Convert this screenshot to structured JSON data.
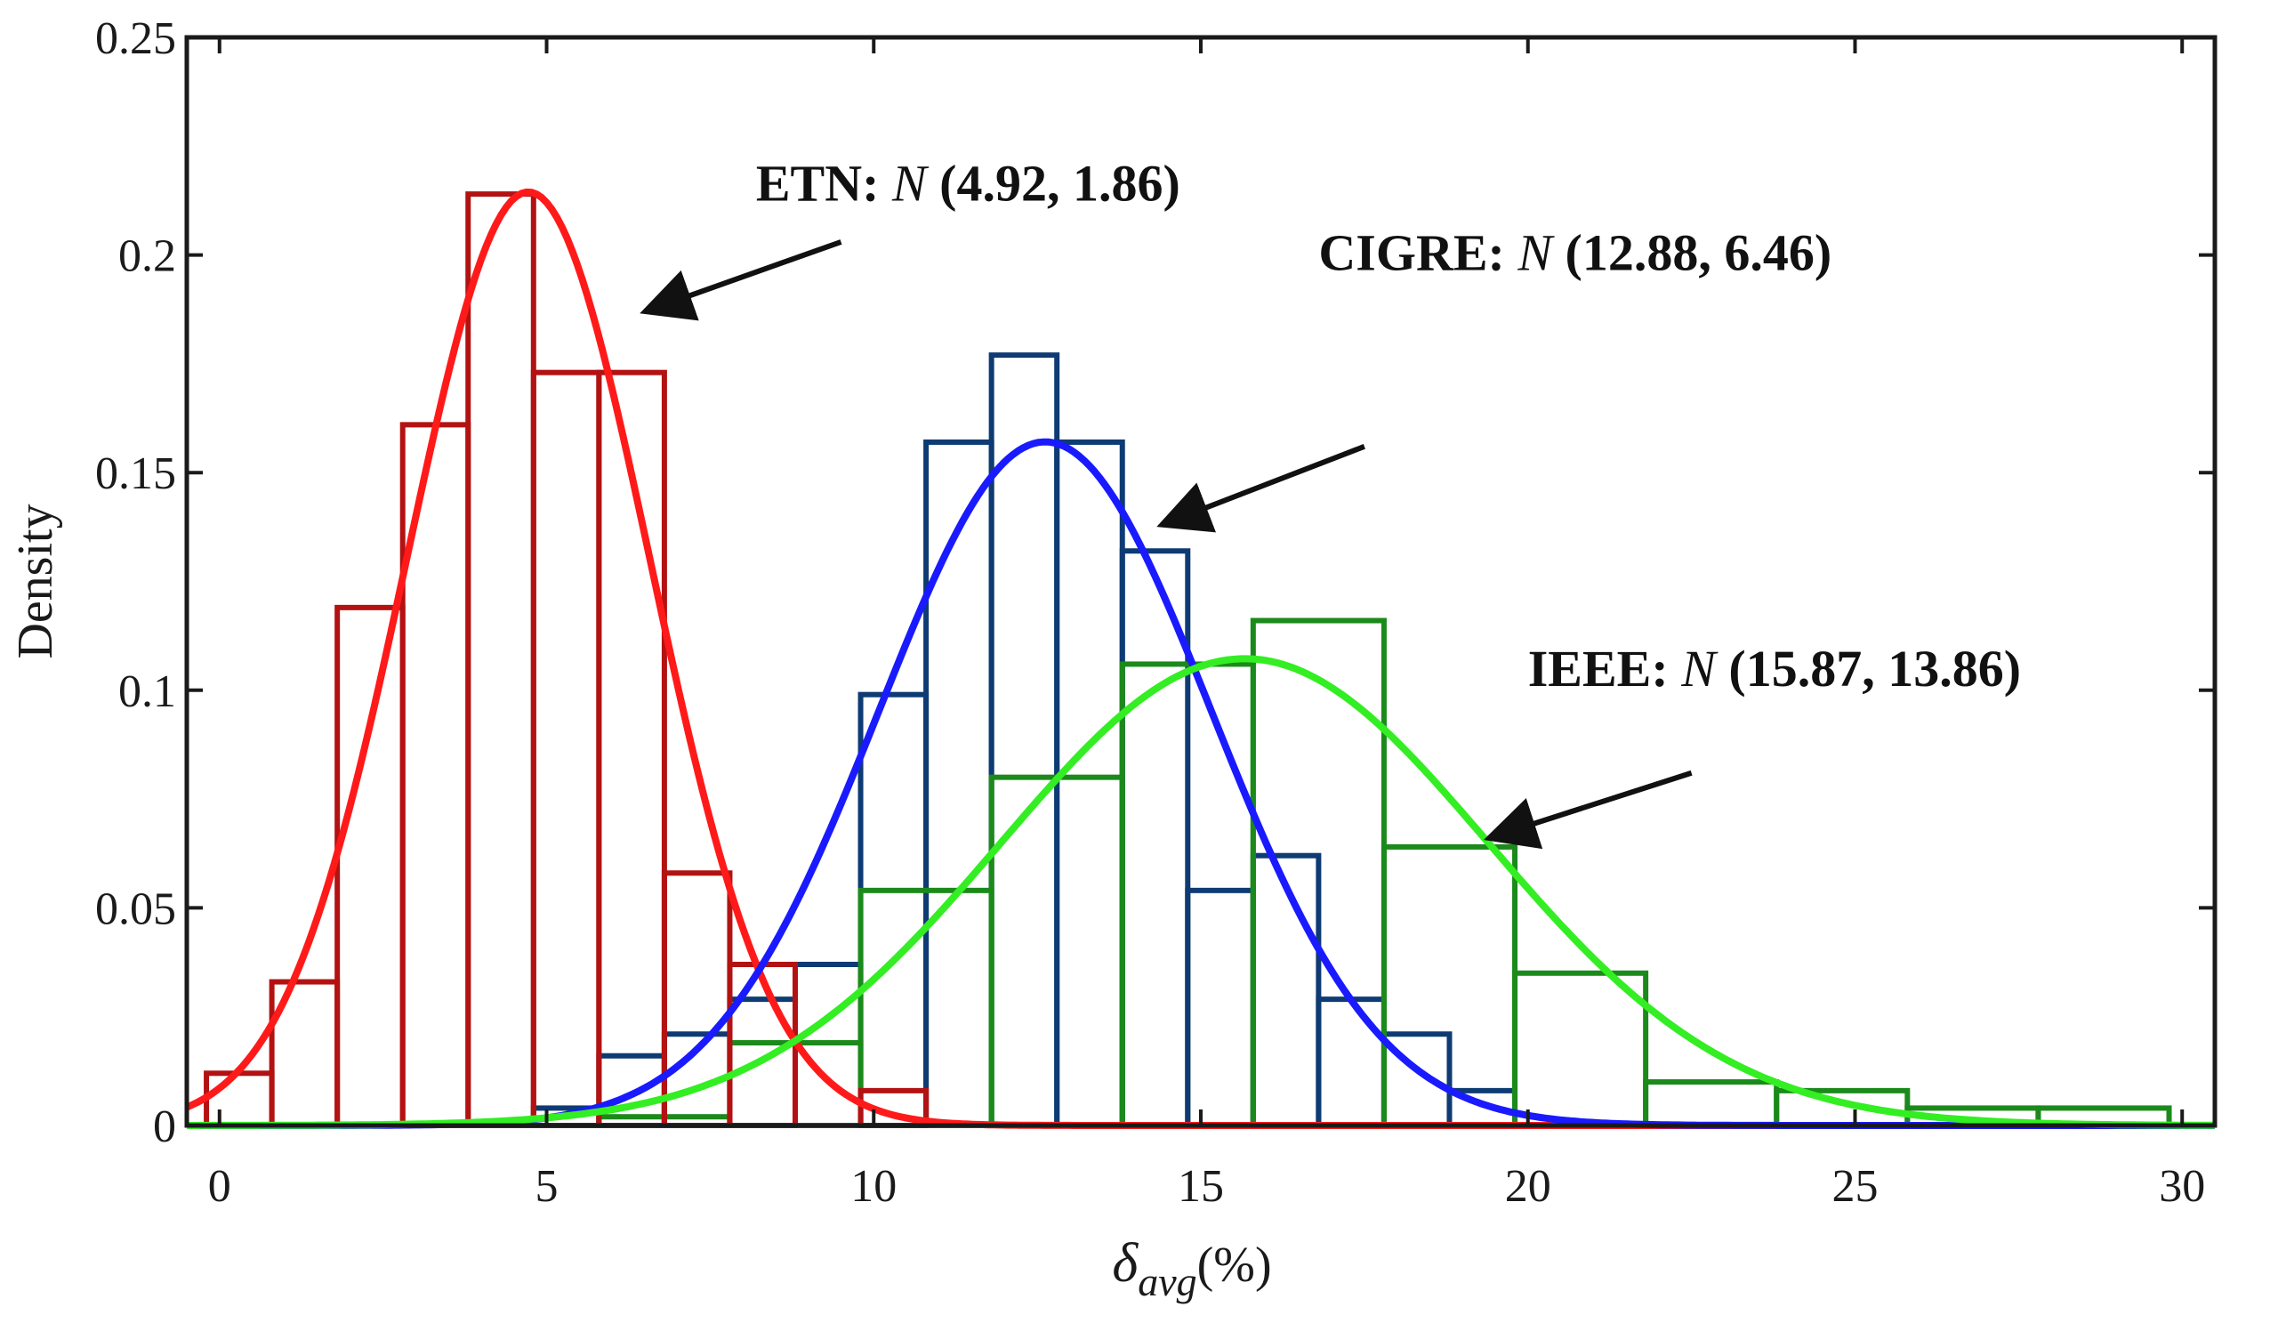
{
  "chart_data": {
    "type": "histogram-with-fitted-normal-curves",
    "xlabel_symbol": "δ",
    "xlabel_subscript": "avg",
    "xlabel_unit": "(%)",
    "ylabel": "Density",
    "xlim": [
      -0.5,
      30.5
    ],
    "ylim": [
      0,
      0.25
    ],
    "x_ticks": [
      0,
      5,
      10,
      15,
      20,
      25,
      30
    ],
    "x_tick_labels": [
      "0",
      "5",
      "10",
      "15",
      "20",
      "25",
      "30"
    ],
    "y_ticks": [
      0,
      0.05,
      0.1,
      0.15,
      0.2,
      0.25
    ],
    "y_tick_labels": [
      "0",
      "0.05",
      "0.1",
      "0.15",
      "0.2",
      "0.25"
    ],
    "series": [
      {
        "name": "ETN",
        "bar_color": "#b31212",
        "curve_color": "#ff1a1a",
        "bin_edges": [
          -0.2,
          0.8,
          1.8,
          2.8,
          3.8,
          4.8,
          5.8,
          6.8,
          7.8,
          8.8,
          9.8,
          10.8
        ],
        "densities": [
          0.012,
          0.033,
          0.119,
          0.161,
          0.214,
          0.173,
          0.173,
          0.058,
          0.037,
          0.0,
          0.008
        ],
        "mean": 4.92,
        "std": 1.86,
        "curve_mu": 4.72,
        "curve_sigma": 1.86
      },
      {
        "name": "CIGRE",
        "bar_color": "#0e3b73",
        "curve_color": "#1a1aff",
        "bin_edges": [
          4.8,
          5.8,
          6.8,
          7.8,
          8.8,
          9.8,
          10.8,
          11.8,
          12.8,
          13.8,
          14.8,
          15.8,
          16.8,
          17.8,
          18.8,
          19.8
        ],
        "densities": [
          0.004,
          0.016,
          0.021,
          0.029,
          0.037,
          0.099,
          0.157,
          0.177,
          0.157,
          0.132,
          0.054,
          0.062,
          0.029,
          0.021,
          0.008
        ],
        "mean": 12.88,
        "std": 6.46,
        "curve_mu": 12.62,
        "curve_sigma": 2.54
      },
      {
        "name": "IEEE",
        "bar_color": "#1b8a1b",
        "curve_color": "#33ee22",
        "bin_edges": [
          5.8,
          7.8,
          9.8,
          11.8,
          13.8,
          15.8,
          17.8,
          19.8,
          21.8,
          23.8,
          25.8,
          27.8,
          29.8
        ],
        "densities": [
          0.002,
          0.019,
          0.054,
          0.08,
          0.106,
          0.116,
          0.064,
          0.035,
          0.01,
          0.008,
          0.004,
          0.004
        ],
        "mean": 15.87,
        "std": 13.86,
        "curve_mu": 15.67,
        "curve_sigma": 3.72
      }
    ],
    "annotations": [
      {
        "series": "ETN",
        "prefix": "ETN: ",
        "dist": "N",
        "params": " (4.92, 1.86)",
        "text_x": 8.2,
        "text_y": 0.2125,
        "arrow_from": [
          9.5,
          0.203
        ],
        "arrow_to": [
          6.5,
          0.187
        ]
      },
      {
        "series": "CIGRE",
        "prefix": "CIGRE: ",
        "dist": "N",
        "params": " (12.88, 6.46)",
        "text_x": 16.8,
        "text_y": 0.1965,
        "arrow_from": [
          17.5,
          0.156
        ],
        "arrow_to": [
          14.4,
          0.138
        ]
      },
      {
        "series": "IEEE",
        "prefix": "IEEE: ",
        "dist": "N",
        "params": " (15.87, 13.86)",
        "text_x": 20.0,
        "text_y": 0.101,
        "arrow_from": [
          22.5,
          0.081
        ],
        "arrow_to": [
          19.4,
          0.066
        ]
      }
    ]
  }
}
